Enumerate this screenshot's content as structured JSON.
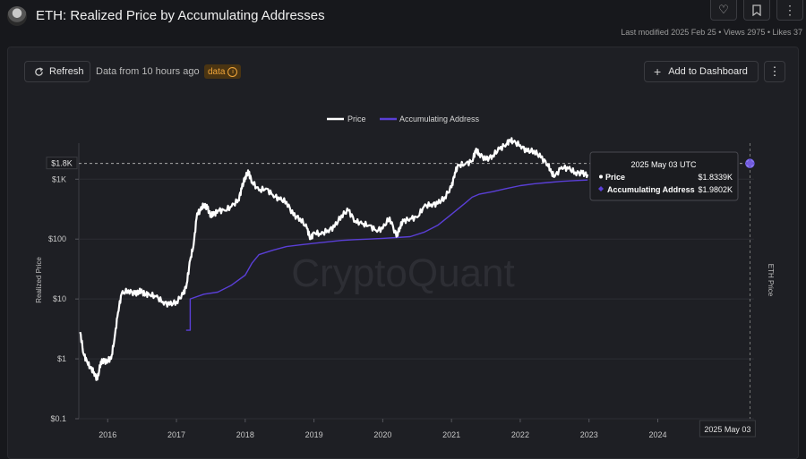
{
  "header": {
    "title": "ETH: Realized Price by Accumulating Addresses",
    "meta": "Last modified 2025 Feb 25 • Views 2975 • Likes 37",
    "icons": [
      "heart-icon",
      "bookmark-icon",
      "more-icon"
    ]
  },
  "toolbar": {
    "refresh_label": "Refresh",
    "data_info": "Data from 10 hours ago",
    "badge_label": "data",
    "add_label": "Add to Dashboard"
  },
  "chart_data": {
    "type": "line",
    "yscale": "log",
    "ylim": [
      0.1,
      4000
    ],
    "xlim": [
      2015.58,
      2025.4
    ],
    "ylabel": "Realized Price",
    "right_label": "ETH Price",
    "watermark": "CryptoQuant",
    "y_ticks": [
      {
        "label": "$0.1",
        "value": 0.1
      },
      {
        "label": "$1",
        "value": 1
      },
      {
        "label": "$10",
        "value": 10
      },
      {
        "label": "$100",
        "value": 100
      },
      {
        "label": "$1K",
        "value": 1000
      }
    ],
    "x_ticks": [
      {
        "label": "2016",
        "value": 2016
      },
      {
        "label": "2017",
        "value": 2017
      },
      {
        "label": "2018",
        "value": 2018
      },
      {
        "label": "2019",
        "value": 2019
      },
      {
        "label": "2020",
        "value": 2020
      },
      {
        "label": "2021",
        "value": 2021
      },
      {
        "label": "2022",
        "value": 2022
      },
      {
        "label": "2023",
        "value": 2023
      },
      {
        "label": "2024",
        "value": 2024
      }
    ],
    "crosshair": {
      "x_label": "2025 May 03",
      "y_label": "$1.8K",
      "y_value": 1833.9,
      "x_value": 2025.34
    },
    "tooltip": {
      "date": "2025 May 03 UTC",
      "rows": [
        {
          "name": "Price",
          "value": "$1.8339K"
        },
        {
          "name": "Accumulating Address",
          "value": "$1.9802K"
        }
      ]
    },
    "series": [
      {
        "name": "Price",
        "color": "#ffffff",
        "x": [
          2015.6,
          2015.65,
          2015.7,
          2015.75,
          2015.8,
          2015.85,
          2015.9,
          2015.95,
          2016.0,
          2016.05,
          2016.1,
          2016.15,
          2016.2,
          2016.3,
          2016.4,
          2016.45,
          2016.5,
          2016.55,
          2016.6,
          2016.7,
          2016.8,
          2016.9,
          2017.0,
          2017.1,
          2017.15,
          2017.2,
          2017.25,
          2017.3,
          2017.35,
          2017.4,
          2017.45,
          2017.5,
          2017.55,
          2017.6,
          2017.7,
          2017.8,
          2017.9,
          2017.95,
          2018.0,
          2018.05,
          2018.1,
          2018.2,
          2018.3,
          2018.4,
          2018.5,
          2018.6,
          2018.7,
          2018.8,
          2018.9,
          2018.95,
          2019.0,
          2019.1,
          2019.2,
          2019.3,
          2019.4,
          2019.5,
          2019.6,
          2019.7,
          2019.8,
          2019.9,
          2020.0,
          2020.1,
          2020.2,
          2020.25,
          2020.3,
          2020.4,
          2020.5,
          2020.6,
          2020.7,
          2020.8,
          2020.9,
          2021.0,
          2021.05,
          2021.1,
          2021.2,
          2021.3,
          2021.35,
          2021.4,
          2021.5,
          2021.6,
          2021.7,
          2021.8,
          2021.85,
          2021.9,
          2022.0,
          2022.1,
          2022.2,
          2022.3,
          2022.4,
          2022.45,
          2022.5,
          2022.6,
          2022.7,
          2022.8,
          2022.9,
          2022.98
        ],
        "values": [
          2.8,
          1.2,
          0.9,
          0.7,
          0.6,
          0.45,
          0.9,
          0.9,
          0.95,
          1.0,
          2.2,
          6.0,
          12.0,
          14.0,
          12.0,
          13.5,
          13.0,
          12.0,
          12.0,
          11.0,
          9.0,
          8.0,
          9.0,
          12.0,
          18.0,
          45.0,
          80.0,
          270.0,
          300.0,
          380.0,
          330.0,
          250.0,
          260.0,
          300.0,
          300.0,
          350.0,
          450.0,
          700.0,
          1100.0,
          1300.0,
          900.0,
          650.0,
          700.0,
          550.0,
          460.0,
          420.0,
          250.0,
          220.0,
          150.0,
          100.0,
          130.0,
          120.0,
          140.0,
          160.0,
          250.0,
          300.0,
          200.0,
          180.0,
          170.0,
          140.0,
          150.0,
          230.0,
          110.0,
          160.0,
          200.0,
          220.0,
          230.0,
          350.0,
          380.0,
          390.0,
          500.0,
          730.0,
          1300.0,
          1700.0,
          1800.0,
          2000.0,
          3000.0,
          2700.0,
          2100.0,
          2500.0,
          3200.0,
          3900.0,
          4500.0,
          4200.0,
          3700.0,
          2900.0,
          3000.0,
          2300.0,
          1800.0,
          1300.0,
          1100.0,
          1600.0,
          1500.0,
          1300.0,
          1250.0,
          1200.0
        ]
      },
      {
        "name": "Accumulating Address",
        "color": "#5a3fd6",
        "x": [
          2017.14,
          2017.2,
          2017.2,
          2017.4,
          2017.6,
          2017.8,
          2018.0,
          2018.1,
          2018.2,
          2018.4,
          2018.6,
          2018.8,
          2019.0,
          2019.2,
          2019.4,
          2019.6,
          2019.8,
          2020.0,
          2020.2,
          2020.4,
          2020.6,
          2020.8,
          2021.0,
          2021.2,
          2021.3,
          2021.4,
          2021.6,
          2021.8,
          2022.0,
          2022.2,
          2022.4,
          2022.6,
          2022.8,
          2022.98
        ],
        "values": [
          3.0,
          3.0,
          10.0,
          12.0,
          13.0,
          17.0,
          25.0,
          40.0,
          55.0,
          65.0,
          75.0,
          80.0,
          85.0,
          90.0,
          95.0,
          98.0,
          100.0,
          103.0,
          106.0,
          110.0,
          130.0,
          170.0,
          260.0,
          400.0,
          500.0,
          560.0,
          620.0,
          700.0,
          780.0,
          840.0,
          880.0,
          920.0,
          950.0,
          970.0
        ]
      }
    ]
  }
}
